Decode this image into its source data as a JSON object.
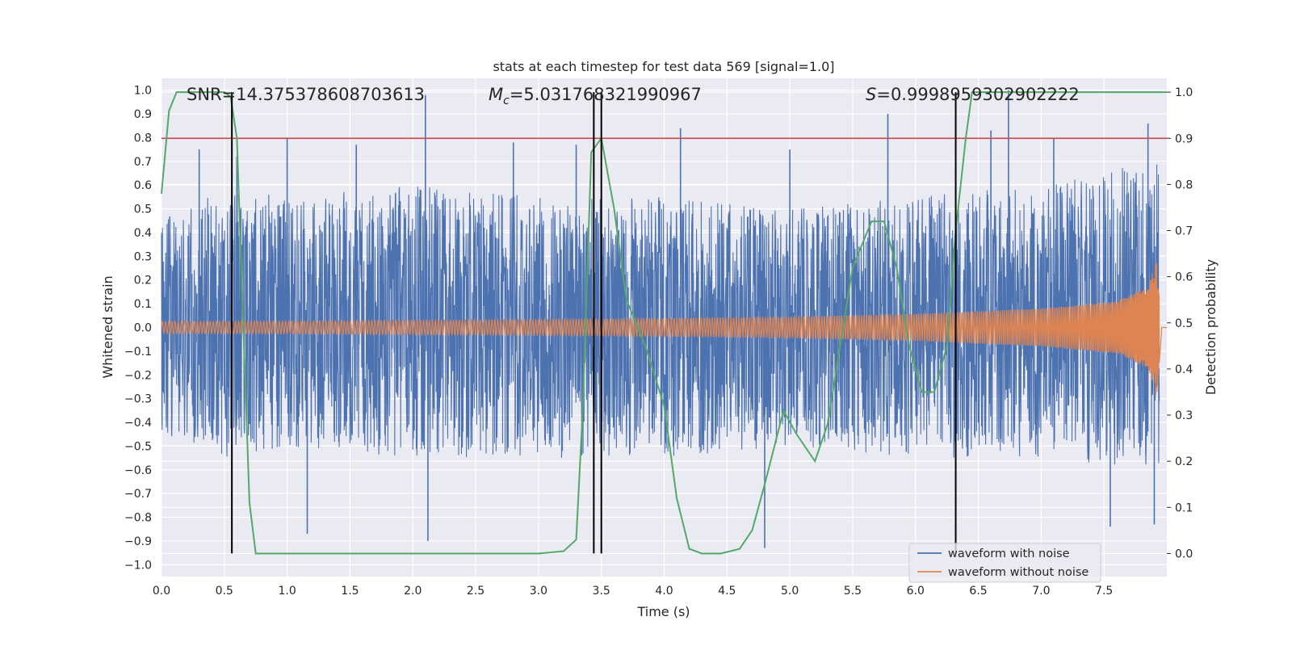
{
  "chart_data": {
    "type": "line",
    "title": "stats at each timestep for test data 569 [signal=1.0]",
    "xlabel": "Time (s)",
    "ylabel": "Whitened strain",
    "y2label": "Detection probability",
    "xlim": [
      0.0,
      8.0
    ],
    "ylim": [
      -1.05,
      1.05
    ],
    "y2lim": [
      -0.05,
      1.03
    ],
    "xticks": [
      "0.0",
      "0.5",
      "1.0",
      "1.5",
      "2.0",
      "2.5",
      "3.0",
      "3.5",
      "4.0",
      "4.5",
      "5.0",
      "5.5",
      "6.0",
      "6.5",
      "7.0",
      "7.5"
    ],
    "yticks": [
      "1.0",
      "0.9",
      "0.8",
      "0.7",
      "0.6",
      "0.5",
      "0.4",
      "0.3",
      "0.2",
      "0.1",
      "0.0",
      "−0.1",
      "−0.2",
      "−0.3",
      "−0.4",
      "−0.5",
      "−0.6",
      "−0.7",
      "−0.8",
      "−0.9",
      "−1.0"
    ],
    "y2ticks": [
      "1.0",
      "0.9",
      "0.8",
      "0.7",
      "0.6",
      "0.5",
      "0.4",
      "0.3",
      "0.2",
      "0.1",
      "0.0"
    ],
    "annotations": {
      "snr": "SNR=14.375378608703613",
      "mc_symbol": "M",
      "mc_sub": "c",
      "mc_value": "=5.031768321990967",
      "s_symbol": "S",
      "s_value": "=0.9998959302902222"
    },
    "threshold": 0.9,
    "vertical_lines": [
      0.56,
      3.44,
      3.5,
      6.32
    ],
    "series": [
      {
        "name": "waveform with noise",
        "color": "#4c72b0",
        "envelope": {
          "x": [
            0.0,
            0.5,
            1.0,
            2.0,
            3.0,
            4.0,
            5.0,
            6.0,
            7.0,
            7.9
          ],
          "upper": [
            0.45,
            0.6,
            0.55,
            0.6,
            0.55,
            0.55,
            0.5,
            0.55,
            0.6,
            0.7
          ],
          "lower": [
            -0.45,
            -0.55,
            -0.5,
            -0.55,
            -0.55,
            -0.55,
            -0.5,
            -0.55,
            -0.55,
            -0.6
          ]
        },
        "spikes": [
          [
            0.3,
            0.75
          ],
          [
            0.6,
            0.72
          ],
          [
            1.0,
            0.8
          ],
          [
            1.16,
            -0.87
          ],
          [
            1.55,
            0.77
          ],
          [
            2.1,
            0.98
          ],
          [
            2.12,
            -0.9
          ],
          [
            2.8,
            0.78
          ],
          [
            3.3,
            0.77
          ],
          [
            4.13,
            0.84
          ],
          [
            4.8,
            -0.93
          ],
          [
            5.0,
            0.75
          ],
          [
            5.78,
            0.9
          ],
          [
            6.6,
            0.83
          ],
          [
            6.74,
            1.0
          ],
          [
            7.1,
            0.8
          ],
          [
            7.55,
            -0.84
          ],
          [
            7.85,
            0.86
          ],
          [
            7.9,
            -0.83
          ]
        ]
      },
      {
        "name": "waveform without noise",
        "color": "#dd8452",
        "amplitude": {
          "x": [
            0.0,
            1.0,
            2.0,
            3.0,
            4.0,
            5.0,
            6.0,
            7.0,
            7.6,
            7.85,
            7.92,
            7.96,
            8.0
          ],
          "y": [
            0.025,
            0.027,
            0.03,
            0.033,
            0.038,
            0.045,
            0.057,
            0.08,
            0.11,
            0.17,
            0.3,
            0.0,
            0.0
          ]
        }
      },
      {
        "name": "detection probability",
        "color": "#55a868",
        "axis": "right",
        "x": [
          0.0,
          0.06,
          0.12,
          0.2,
          0.3,
          0.4,
          0.5,
          0.55,
          0.6,
          0.65,
          0.7,
          0.75,
          0.8,
          1.0,
          2.0,
          3.0,
          3.2,
          3.3,
          3.35,
          3.42,
          3.5,
          3.6,
          3.7,
          3.85,
          4.0,
          4.1,
          4.2,
          4.3,
          4.45,
          4.6,
          4.7,
          4.8,
          4.95,
          5.05,
          5.2,
          5.3,
          5.4,
          5.5,
          5.65,
          5.75,
          5.85,
          5.95,
          6.05,
          6.15,
          6.25,
          6.32,
          6.4,
          6.45,
          7.0,
          8.0
        ],
        "y": [
          0.78,
          0.96,
          1.0,
          1.0,
          1.0,
          1.0,
          1.0,
          0.99,
          0.9,
          0.5,
          0.11,
          0.0,
          0.0,
          0.0,
          0.0,
          0.0,
          0.005,
          0.03,
          0.3,
          0.87,
          0.9,
          0.75,
          0.55,
          0.45,
          0.32,
          0.12,
          0.01,
          0.0,
          0.0,
          0.01,
          0.05,
          0.15,
          0.31,
          0.26,
          0.2,
          0.28,
          0.45,
          0.62,
          0.72,
          0.72,
          0.62,
          0.45,
          0.35,
          0.35,
          0.45,
          0.7,
          0.9,
          1.0,
          1.0,
          1.0
        ]
      }
    ],
    "threshold_color": "#c44e52",
    "legend": [
      "waveform with noise",
      "waveform without noise"
    ],
    "legend_position": "lower-right",
    "grid": true
  }
}
